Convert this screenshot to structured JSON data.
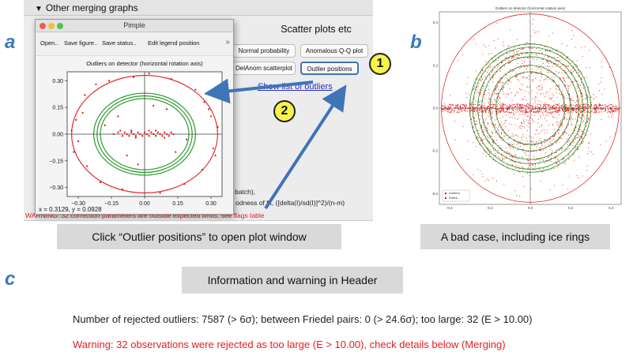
{
  "panel_labels": {
    "a": "a",
    "b": "b",
    "c": "c"
  },
  "background_app": {
    "section_header": "Other merging graphs",
    "section_title": "Scatter plots etc",
    "buttons": {
      "normal_probability": "Normal probability",
      "anomalous_qq": "Anomalous Q-Q plot",
      "delanom_scatter": "DelAnom scatterplot",
      "outlier_positions": "Outlier positions"
    },
    "show_outliers_link": "Show list of outliers",
    "stats_line1": "d batch),",
    "stats_line2": "odness of fit, ([delta(I)/sd(I)]^2)/(n-m)",
    "warning_line": "WARNING: 32 correction parameters are outside expected limits, see flags table"
  },
  "pimple_window": {
    "title": "Pimple",
    "toolbar": {
      "open": "Open..",
      "save_figure": "Save figure..",
      "save_status": "Save status..",
      "edit_legend": "Edit legend position",
      "more": "»"
    },
    "coordinate_readout": "x = 0.3129, y = 0.0928"
  },
  "chart_data": [
    {
      "type": "scatter",
      "title": "Outliers on detector (horizontal rotation axis)",
      "xlim": [
        -0.35,
        0.35
      ],
      "ylim": [
        -0.35,
        0.35
      ],
      "xticks": [
        -0.3,
        -0.15,
        0.0,
        0.15,
        0.3
      ],
      "xtick_labels": [
        "−0.30",
        "−0.15",
        "0.00",
        "0.15",
        "0.30"
      ],
      "yticks": [
        -0.3,
        -0.15,
        0.0,
        0.15,
        0.3
      ],
      "ytick_labels": [
        "−0.30",
        "−0.15",
        "0.00",
        "0.15",
        "0.30"
      ],
      "rings": [
        {
          "radius": 0.33,
          "color": "#e03030"
        },
        {
          "radius": 0.2,
          "color": "#2a9a2a"
        },
        {
          "radius": 0.215,
          "color": "#2a9a2a"
        },
        {
          "radius": 0.23,
          "color": "#2a9a2a"
        }
      ],
      "points_color": "#dd1111",
      "points": [
        [
          -0.33,
          0.02
        ],
        [
          -0.3,
          -0.04
        ],
        [
          -0.28,
          0.12
        ],
        [
          -0.26,
          -0.18
        ],
        [
          -0.32,
          -0.1
        ],
        [
          -0.31,
          0.08
        ],
        [
          -0.27,
          0.22
        ],
        [
          -0.22,
          0.28
        ],
        [
          -0.2,
          -0.27
        ],
        [
          -0.16,
          0.3
        ],
        [
          -0.1,
          -0.31
        ],
        [
          -0.05,
          0.32
        ],
        [
          0.02,
          0.34
        ],
        [
          0.07,
          -0.33
        ],
        [
          0.12,
          0.31
        ],
        [
          0.18,
          -0.28
        ],
        [
          0.23,
          0.25
        ],
        [
          0.26,
          -0.2
        ],
        [
          0.29,
          0.14
        ],
        [
          0.31,
          -0.08
        ],
        [
          0.33,
          0.04
        ],
        [
          0.3,
          0.1
        ],
        [
          0.32,
          -0.12
        ],
        [
          0.27,
          0.18
        ],
        [
          -0.12,
          0.1
        ],
        [
          -0.08,
          -0.12
        ],
        [
          0.1,
          0.14
        ],
        [
          0.14,
          -0.1
        ],
        [
          -0.18,
          0.05
        ],
        [
          0.19,
          -0.03
        ],
        [
          0.04,
          0.16
        ],
        [
          -0.03,
          -0.17
        ],
        [
          -0.14,
          0.0
        ],
        [
          -0.12,
          0.01
        ],
        [
          -0.1,
          -0.01
        ],
        [
          -0.09,
          0.01
        ],
        [
          -0.08,
          0.0
        ],
        [
          -0.07,
          -0.01
        ],
        [
          -0.06,
          0.01
        ],
        [
          -0.05,
          0.0
        ],
        [
          -0.04,
          -0.01
        ],
        [
          -0.03,
          0.01
        ],
        [
          -0.02,
          0.0
        ],
        [
          -0.01,
          -0.01
        ],
        [
          0.0,
          0.01
        ],
        [
          0.01,
          0.0
        ],
        [
          0.02,
          -0.01
        ],
        [
          0.03,
          0.01
        ],
        [
          0.04,
          0.0
        ],
        [
          0.05,
          -0.01
        ],
        [
          0.06,
          0.01
        ],
        [
          0.07,
          0.0
        ],
        [
          0.08,
          -0.01
        ],
        [
          0.09,
          0.01
        ],
        [
          0.1,
          0.0
        ],
        [
          0.11,
          -0.01
        ],
        [
          0.12,
          0.01
        ],
        [
          0.13,
          0.0
        ],
        [
          -0.11,
          0.02
        ],
        [
          -0.04,
          -0.02
        ],
        [
          0.05,
          0.02
        ],
        [
          0.09,
          -0.02
        ],
        [
          -0.06,
          0.02
        ],
        [
          0.02,
          0.02
        ]
      ]
    },
    {
      "type": "scatter",
      "title": "Outliers on detector (horizontal rotation axis)",
      "xlim": [
        -0.45,
        0.45
      ],
      "ylim": [
        -0.45,
        0.45
      ],
      "yticks": [
        -0.4,
        -0.2,
        0.0,
        0.2,
        0.4
      ],
      "ytick_labels": [
        "-0.4",
        "-0.2",
        "0.0",
        "0.2",
        "0.4"
      ],
      "xticks": [
        -0.4,
        -0.2,
        0.0,
        0.2,
        0.4
      ],
      "xtick_labels": [
        "-0.4",
        "-0.2",
        "0.0",
        "0.2",
        "0.4"
      ],
      "rings": [
        {
          "radius": 0.44,
          "color": "#e03030"
        },
        {
          "radius": 0.17,
          "color": "#2a9a2a"
        },
        {
          "radius": 0.2,
          "color": "#2a9a2a"
        },
        {
          "radius": 0.24,
          "color": "#2a9a2a"
        },
        {
          "radius": 0.26,
          "color": "#2a9a2a"
        },
        {
          "radius": 0.285,
          "color": "#2a9a2a"
        },
        {
          "radius": 0.3,
          "color": "#2a9a2a"
        }
      ],
      "legend": {
        "placement": "bottom-left",
        "entries": [
          "Outliers",
          "Ethics"
        ]
      },
      "points_color": "#e01010"
    }
  ],
  "callouts": {
    "one": "1",
    "two": "2"
  },
  "captions": {
    "a": "Click “Outlier positions” to open plot window",
    "b": "A bad case, including ice rings",
    "c": "Information and warning in Header"
  },
  "header_info": {
    "rejected_line": "Number of rejected outliers: 7587 (> 6σ); between Friedel pairs: 0 (> 24.6σ); too large: 32 (E > 10.00)",
    "warning_line": "Warning: 32 observations were rejected as too large (E > 10.00), check details below (Merging)"
  },
  "colors": {
    "arrow": "#3f74b8",
    "callout_fill": "#f8f34a",
    "warning": "#e02020",
    "link": "#2a2ac8"
  }
}
